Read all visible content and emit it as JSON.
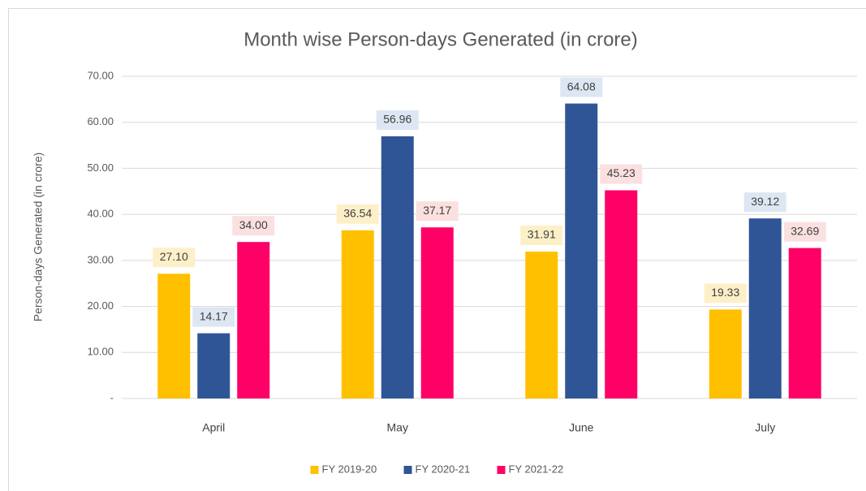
{
  "chart_data": {
    "type": "bar",
    "title": "Month wise Person-days Generated (in crore)",
    "y_label": "Person-days Generated (in crore)",
    "categories": [
      "April",
      "May",
      "June",
      "July"
    ],
    "series": [
      {
        "name": "FY 2019-20",
        "color": "#ffc000",
        "label_bg": "#fdf0c9",
        "values": [
          27.1,
          36.54,
          31.91,
          19.33
        ],
        "value_labels": [
          "27.10",
          "36.54",
          "31.91",
          "19.33"
        ]
      },
      {
        "name": "FY 2020-21",
        "color": "#2f5597",
        "label_bg": "#dde7f3",
        "values": [
          14.17,
          56.96,
          64.08,
          39.12
        ],
        "value_labels": [
          "14.17",
          "56.96",
          "64.08",
          "39.12"
        ]
      },
      {
        "name": "FY 2021-22",
        "color": "#ff0066",
        "label_bg": "#fbe0e0",
        "values": [
          34,
          37.17,
          45.23,
          32.69
        ],
        "value_labels": [
          "34.00",
          "37.17",
          "45.23",
          "32.69"
        ]
      }
    ],
    "ylim": [
      0,
      70
    ],
    "yticks": [
      {
        "value": 0,
        "label": "-"
      },
      {
        "value": 10,
        "label": "10.00"
      },
      {
        "value": 20,
        "label": "20.00"
      },
      {
        "value": 30,
        "label": "30.00"
      },
      {
        "value": 40,
        "label": "40.00"
      },
      {
        "value": 50,
        "label": "50.00"
      },
      {
        "value": 60,
        "label": "60.00"
      },
      {
        "value": 70,
        "label": "70.00"
      }
    ],
    "grid": true,
    "legend": "bottom"
  }
}
